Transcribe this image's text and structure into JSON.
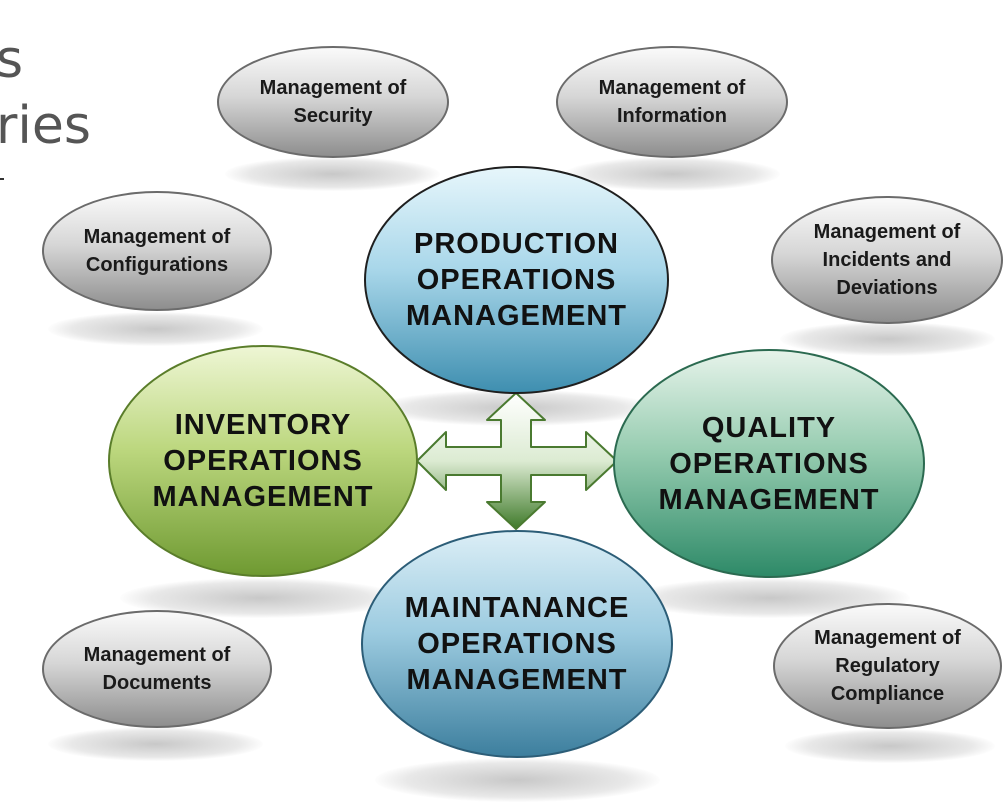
{
  "slide_title": {
    "line1": "s",
    "line2": "ries"
  },
  "core_functions": {
    "production": "PRODUCTION OPERATIONS MANAGEMENT",
    "inventory": "INVENTORY OPERATIONS MANAGEMENT",
    "quality": "QUALITY OPERATIONS MANAGEMENT",
    "maintenance": "MAINTANANCE OPERATIONS MANAGEMENT"
  },
  "support_functions": {
    "security": "Management of Security",
    "information": "Management of Information",
    "configurations": "Management of Configurations",
    "incidents": "Management of Incidents and Deviations",
    "documents": "Management of Documents",
    "compliance": "Management of Regulatory Compliance"
  },
  "colors": {
    "production_fill": "#a9d7ea",
    "maintenance_fill": "#9ccbe0",
    "inventory_fill": "#bcd77e",
    "quality_fill": "#96ccb0",
    "support_fill": "#c8c8c8",
    "arrow_fill": "#5f9040"
  }
}
